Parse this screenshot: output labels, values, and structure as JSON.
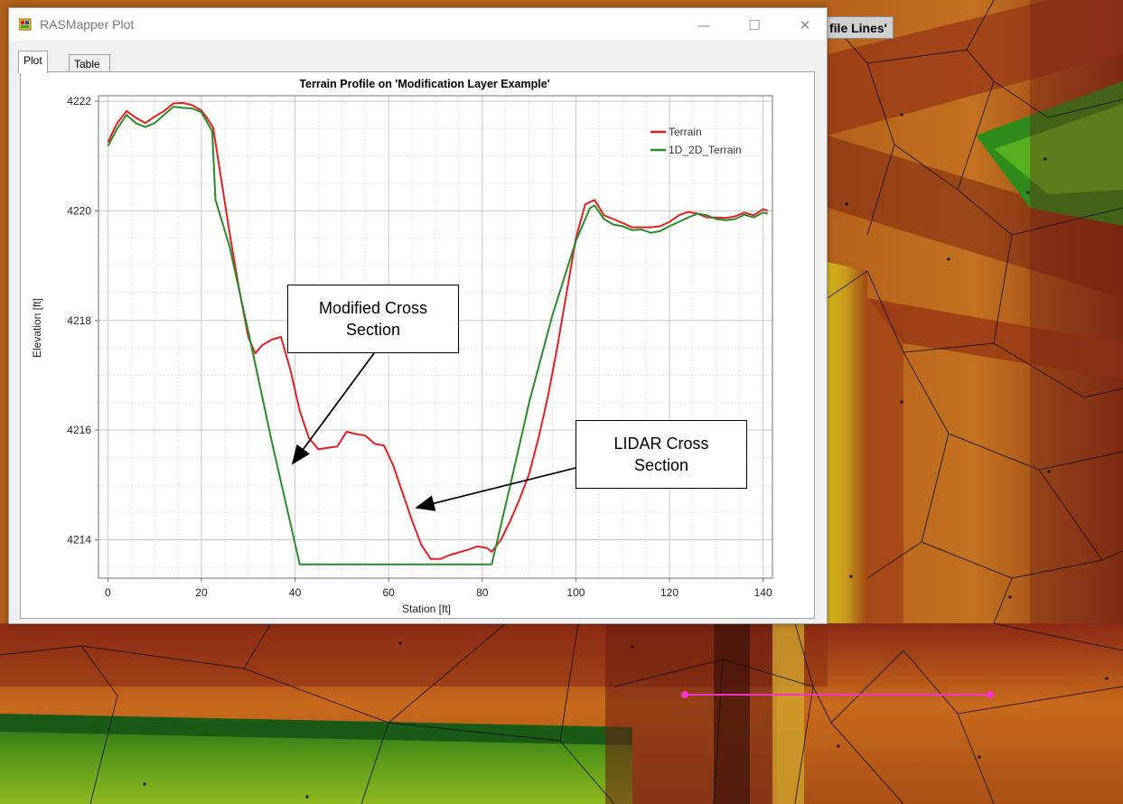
{
  "window": {
    "title": "RASMapper Plot",
    "controls": {
      "minimize": "—",
      "maximize": "☐",
      "close": "✕"
    },
    "tabs": [
      {
        "label": "Plot",
        "active": true
      },
      {
        "label": "Table",
        "active": false
      }
    ]
  },
  "map": {
    "label_fragment": "file Lines'",
    "profile_line_color": "#ff33cc"
  },
  "annotations": {
    "modified": "Modified Cross\nSection",
    "lidar": "LIDAR Cross\nSection"
  },
  "chart_data": {
    "type": "line",
    "title": "Terrain Profile on 'Modification Layer Example'",
    "xlabel": "Station [ft]",
    "ylabel": "Elevation [ft]",
    "xlim": [
      -2,
      142
    ],
    "ylim": [
      4213.3,
      4222.1
    ],
    "xticks": [
      0,
      20,
      40,
      60,
      80,
      100,
      120,
      140
    ],
    "yticks": [
      4214,
      4216,
      4218,
      4220,
      4222
    ],
    "grid": true,
    "legend": "top-right",
    "series": [
      {
        "name": "Terrain",
        "color": "#e02020",
        "x": [
          0,
          2,
          4,
          6,
          8,
          10,
          12,
          14,
          16,
          18,
          20,
          21,
          22.5,
          24,
          26,
          28,
          30,
          31.5,
          33,
          35,
          37,
          39,
          41,
          43,
          45,
          47,
          49,
          51,
          53,
          55,
          57,
          59,
          61,
          63,
          65,
          67,
          69,
          71,
          73,
          75,
          77,
          79,
          81,
          82,
          84,
          86,
          88,
          90,
          92,
          94,
          96,
          98,
          100,
          102,
          104,
          106,
          108,
          110,
          112,
          114,
          116,
          118,
          120,
          122,
          124,
          126,
          128,
          130,
          132,
          134,
          136,
          138,
          140,
          141
        ],
        "y": [
          4221.25,
          4221.6,
          4221.82,
          4221.7,
          4221.6,
          4221.72,
          4221.82,
          4221.96,
          4221.97,
          4221.93,
          4221.83,
          4221.72,
          4221.52,
          4220.7,
          4219.6,
          4218.6,
          4217.7,
          4217.4,
          4217.55,
          4217.65,
          4217.7,
          4217.1,
          4216.35,
          4215.85,
          4215.65,
          4215.68,
          4215.7,
          4215.97,
          4215.93,
          4215.9,
          4215.75,
          4215.72,
          4215.35,
          4214.85,
          4214.35,
          4213.9,
          4213.65,
          4213.65,
          4213.72,
          4213.77,
          4213.82,
          4213.88,
          4213.85,
          4213.78,
          4214.0,
          4214.35,
          4214.75,
          4215.2,
          4215.85,
          4216.6,
          4217.5,
          4218.5,
          4219.5,
          4220.12,
          4220.2,
          4219.92,
          4219.85,
          4219.78,
          4219.7,
          4219.7,
          4219.7,
          4219.72,
          4219.8,
          4219.92,
          4219.98,
          4219.95,
          4219.88,
          4219.88,
          4219.87,
          4219.9,
          4219.97,
          4219.92,
          4220.03,
          4220.0
        ]
      },
      {
        "name": "1D_2D_Terrain",
        "color": "#2a8a2a",
        "x": [
          0,
          2,
          4,
          6,
          8,
          10,
          12,
          14,
          16,
          18,
          20,
          22.3,
          23,
          26,
          30,
          35,
          41,
          50,
          60,
          70,
          80,
          82,
          86,
          90,
          95,
          100,
          103,
          104,
          106,
          108,
          110,
          112,
          114,
          116,
          118,
          120,
          122,
          124,
          126,
          128,
          130,
          132,
          134,
          136,
          138,
          140,
          141
        ],
        "y": [
          4221.18,
          4221.5,
          4221.75,
          4221.6,
          4221.53,
          4221.6,
          4221.75,
          4221.9,
          4221.88,
          4221.87,
          4221.8,
          4221.45,
          4220.2,
          4219.35,
          4217.8,
          4215.8,
          4213.55,
          4213.55,
          4213.55,
          4213.55,
          4213.55,
          4213.55,
          4215.0,
          4216.5,
          4218.1,
          4219.45,
          4220.05,
          4220.1,
          4219.85,
          4219.75,
          4219.72,
          4219.65,
          4219.66,
          4219.6,
          4219.63,
          4219.72,
          4219.8,
          4219.88,
          4219.95,
          4219.92,
          4219.85,
          4219.83,
          4219.85,
          4219.93,
          4219.88,
          4219.97,
          4219.95
        ]
      }
    ]
  }
}
